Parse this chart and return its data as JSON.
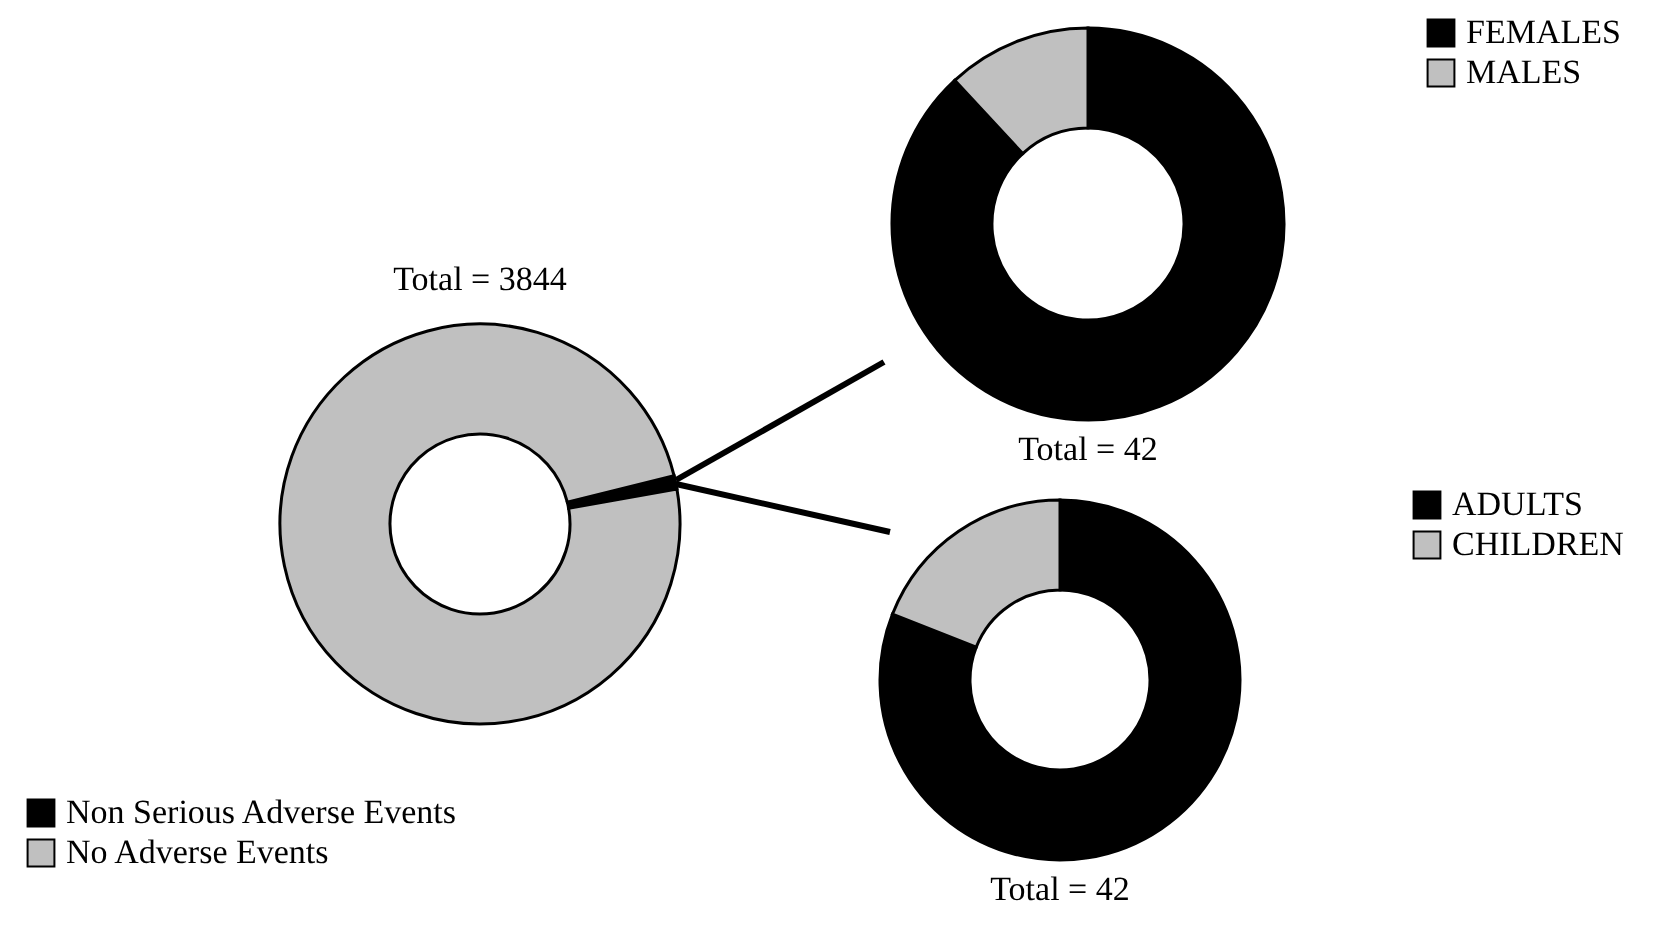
{
  "chart_data": [
    {
      "type": "donut",
      "title": "Total = 3844",
      "categories": [
        "Non Serious Adverse Events",
        "No Adverse Events"
      ],
      "values": [
        1.09,
        98.91
      ],
      "colors": [
        "#000000",
        "#c0c0c0"
      ],
      "legend": "bottom left"
    },
    {
      "type": "donut",
      "title": "Total = 42",
      "categories": [
        "FEMALES",
        "MALES"
      ],
      "values": [
        88.1,
        11.9
      ],
      "colors": [
        "#000000",
        "#c0c0c0"
      ],
      "legend": "top right"
    },
    {
      "type": "donut",
      "title": "Total = 42",
      "categories": [
        "ADULTS",
        "CHILDREN"
      ],
      "values": [
        80.95,
        19.05
      ],
      "colors": [
        "#000000",
        "#c0c0c0"
      ],
      "legend": "top right"
    }
  ]
}
